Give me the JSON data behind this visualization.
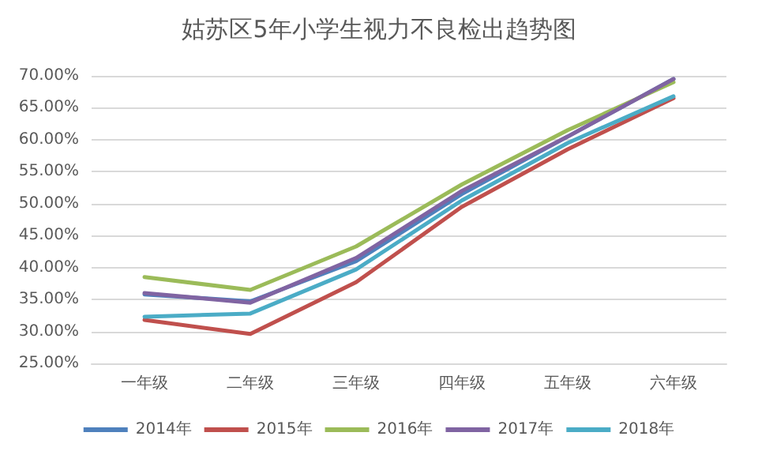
{
  "chart_data": {
    "type": "line",
    "title": "姑苏区5年小学生视力不良检出趋势图",
    "categories": [
      "一年级",
      "二年级",
      "三年级",
      "四年级",
      "五年级",
      "六年级"
    ],
    "series": [
      {
        "name": "2014年",
        "color": "#4f81bd",
        "values": [
          35.8,
          34.7,
          41,
          51.5,
          60.5,
          69.5
        ]
      },
      {
        "name": "2015年",
        "color": "#c0504d",
        "values": [
          31.8,
          29.6,
          37.7,
          49.5,
          58.5,
          66.5
        ]
      },
      {
        "name": "2016年",
        "color": "#9bbb59",
        "values": [
          38.5,
          36.5,
          43.3,
          53,
          61.5,
          69
        ]
      },
      {
        "name": "2017年",
        "color": "#8064a2",
        "values": [
          36,
          34.5,
          41.5,
          52,
          60.5,
          69.5
        ]
      },
      {
        "name": "2018年",
        "color": "#4bacc6",
        "values": [
          32.3,
          32.8,
          39.7,
          50.5,
          59.5,
          66.8
        ]
      }
    ],
    "ylim": [
      25,
      70
    ],
    "yticks": [
      {
        "value": 25,
        "label": "25.00%"
      },
      {
        "value": 30,
        "label": "30.00%"
      },
      {
        "value": 35,
        "label": "35.00%"
      },
      {
        "value": 40,
        "label": "40.00%"
      },
      {
        "value": 45,
        "label": "45.00%"
      },
      {
        "value": 50,
        "label": "50.00%"
      },
      {
        "value": 55,
        "label": "55.00%"
      },
      {
        "value": 60,
        "label": "60.00%"
      },
      {
        "value": 65,
        "label": "65.00%"
      },
      {
        "value": 70,
        "label": "70.00%"
      }
    ],
    "grid": "y",
    "legend": "bottom",
    "marker": "none",
    "line_style": "solid"
  }
}
